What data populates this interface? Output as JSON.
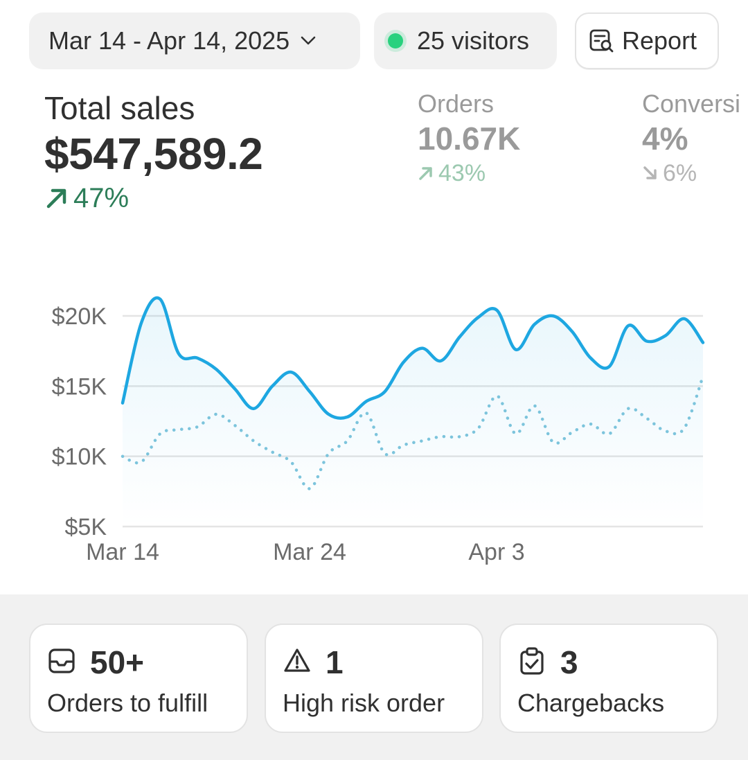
{
  "header": {
    "date_range": "Mar 14 - Apr 14, 2025",
    "visitors": "25 visitors",
    "report_label": "Report"
  },
  "metrics": {
    "total_sales": {
      "label": "Total sales",
      "value": "$547,589.2",
      "change": "47%",
      "direction": "up"
    },
    "orders": {
      "label": "Orders",
      "value": "10.67K",
      "change": "43%",
      "direction": "up"
    },
    "conversion": {
      "label": "Conversi",
      "value": "4%",
      "change": "6%",
      "direction": "down"
    }
  },
  "colors": {
    "primary_series": "#1ea7e1",
    "comparison_series": "#7cc4dc",
    "positive": "#2c7d58",
    "live_dot": "#29d17e"
  },
  "chart_data": {
    "type": "line",
    "ylim": [
      5000,
      20000
    ],
    "y_ticks": [
      "$20K",
      "$15K",
      "$10K",
      "$5K"
    ],
    "y_tick_values": [
      20000,
      15000,
      10000,
      5000
    ],
    "x_ticks": [
      "Mar 14",
      "Mar 24",
      "Apr 3"
    ],
    "grid": true,
    "series": [
      {
        "style": "solid",
        "values": [
          13800,
          19500,
          21200,
          17300,
          17000,
          16200,
          14800,
          13400,
          15000,
          16000,
          14600,
          13000,
          12800,
          13900,
          14600,
          16700,
          17700,
          16800,
          18500,
          19900,
          20400,
          17600,
          19400,
          20000,
          18900,
          17000,
          16400,
          19300,
          18200,
          18600,
          19800,
          18100
        ]
      },
      {
        "style": "dotted",
        "values": [
          10000,
          9600,
          11600,
          11900,
          12100,
          13000,
          12200,
          11100,
          10300,
          9600,
          7700,
          10200,
          11100,
          13100,
          10200,
          10800,
          11100,
          11400,
          11400,
          12000,
          14300,
          11600,
          13600,
          11000,
          11700,
          12300,
          11600,
          13400,
          12700,
          11800,
          12000,
          15700
        ]
      }
    ]
  },
  "cards": [
    {
      "icon": "inbox-icon",
      "count": "50+",
      "label": "Orders to fulfill"
    },
    {
      "icon": "warning-icon",
      "count": "1",
      "label": "High risk order"
    },
    {
      "icon": "clipboard-check-icon",
      "count": "3",
      "label": "Chargebacks"
    }
  ]
}
